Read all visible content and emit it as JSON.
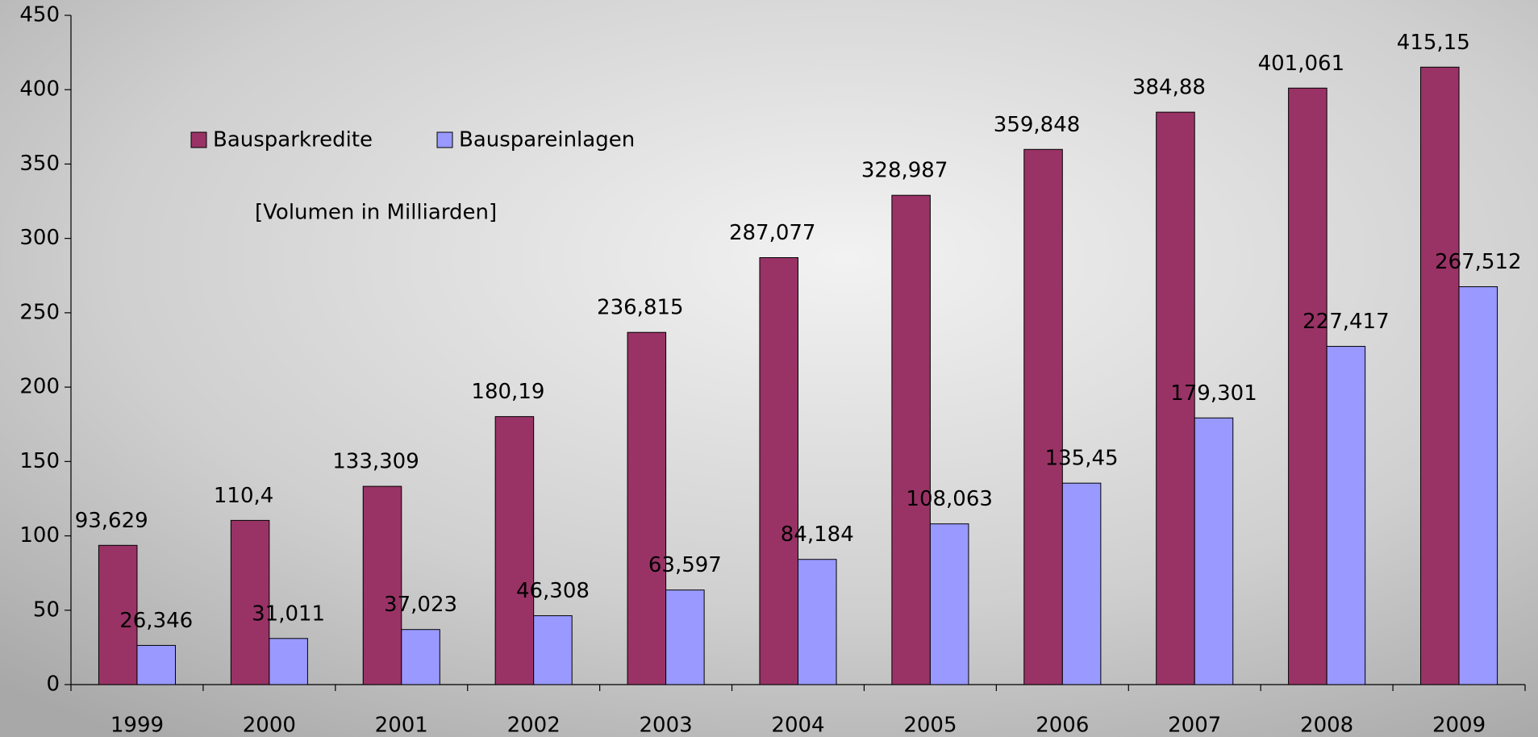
{
  "chart_data": {
    "type": "bar",
    "annotation": "[Volumen in Milliarden]",
    "categories": [
      "1999",
      "2000",
      "2001",
      "2002",
      "2003",
      "2004",
      "2005",
      "2006",
      "2007",
      "2008",
      "2009"
    ],
    "series": [
      {
        "name": "Bausparkredite",
        "color": "#993366",
        "values": [
          93.629,
          110.4,
          133.309,
          180.19,
          236.815,
          287.077,
          328.987,
          359.848,
          384.88,
          401.061,
          415.15
        ],
        "value_labels": [
          "93,629",
          "110,4",
          "133,309",
          "180,19",
          "236,815",
          "287,077",
          "328,987",
          "359,848",
          "384,88",
          "401,061",
          "415,15"
        ]
      },
      {
        "name": "Bauspareinlagen",
        "color": "#9999ff",
        "values": [
          26.346,
          31.011,
          37.023,
          46.308,
          63.597,
          84.184,
          108.063,
          135.45,
          179.301,
          227.417,
          267.512
        ],
        "value_labels": [
          "26,346",
          "31,011",
          "37,023",
          "46,308",
          "63,597",
          "84,184",
          "108,063",
          "135,45",
          "179,301",
          "227,417",
          "267,512"
        ]
      }
    ],
    "ylim": [
      0,
      450
    ],
    "yticks": [
      0,
      50,
      100,
      150,
      200,
      250,
      300,
      350,
      400,
      450
    ]
  }
}
